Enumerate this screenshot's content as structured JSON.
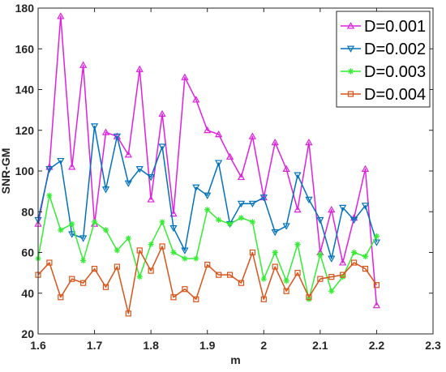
{
  "chart_data": {
    "type": "line",
    "xlabel": "m",
    "ylabel": "SNR-GM",
    "xlim": [
      1.6,
      2.3
    ],
    "ylim": [
      20,
      180
    ],
    "xticks": [
      "1.6",
      "1.7",
      "1.8",
      "1.9",
      "2",
      "2.1",
      "2.2",
      "2.3"
    ],
    "yticks": [
      "20",
      "40",
      "60",
      "80",
      "100",
      "120",
      "140",
      "160",
      "180"
    ],
    "grid": false,
    "legend_position": "top-right",
    "x": [
      1.6,
      1.62,
      1.64,
      1.66,
      1.68,
      1.7,
      1.72,
      1.74,
      1.76,
      1.78,
      1.8,
      1.82,
      1.84,
      1.86,
      1.88,
      1.9,
      1.92,
      1.94,
      1.96,
      1.98,
      2.0,
      2.02,
      2.04,
      2.06,
      2.08,
      2.1,
      2.12,
      2.14,
      2.16,
      2.18,
      2.2
    ],
    "series": [
      {
        "name": "D=0.001",
        "color": "#e020e0",
        "marker": "triangle-up",
        "values": [
          74,
          102,
          176,
          102,
          152,
          74,
          119,
          117,
          108,
          150,
          86,
          128,
          79,
          146,
          135,
          120,
          118,
          107,
          97,
          117,
          87,
          114,
          101,
          81,
          114,
          60,
          81,
          55,
          77,
          101,
          34
        ]
      },
      {
        "name": "D=0.002",
        "color": "#0072bd",
        "marker": "triangle-down",
        "values": [
          76,
          101,
          105,
          69,
          67,
          122,
          91,
          117,
          94,
          101,
          97,
          112,
          72,
          61,
          92,
          88,
          104,
          74,
          84,
          84,
          87,
          70,
          73,
          98,
          86,
          76,
          57,
          82,
          76,
          83,
          65
        ]
      },
      {
        "name": "D=0.003",
        "color": "#33ee33",
        "marker": "star",
        "values": [
          57,
          88,
          71,
          74,
          56,
          75,
          71,
          61,
          67,
          48,
          64,
          75,
          60,
          57,
          57,
          81,
          76,
          74,
          77,
          75,
          47,
          60,
          46,
          64,
          37,
          59,
          41,
          48,
          60,
          58,
          68
        ]
      },
      {
        "name": "D=0.004",
        "color": "#d95319",
        "marker": "square",
        "values": [
          49,
          55,
          38,
          47,
          45,
          52,
          43,
          53,
          30,
          61,
          51,
          63,
          38,
          42,
          37,
          54,
          49,
          49,
          45,
          60,
          37,
          53,
          41,
          50,
          38,
          47,
          48,
          49,
          55,
          52,
          44
        ]
      }
    ]
  }
}
